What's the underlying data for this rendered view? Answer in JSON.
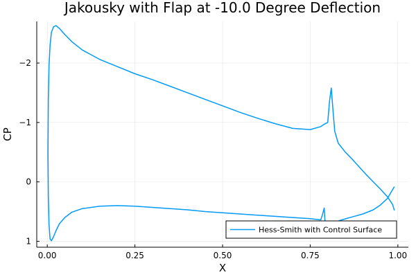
{
  "chart_data": {
    "type": "line",
    "title": "Jakousky with Flap at -10.0 Degree Deflection",
    "xlabel": "X",
    "ylabel": "CP",
    "xlim": [
      -0.03,
      1.03
    ],
    "ylim": [
      -2.7,
      1.1
    ],
    "y_axis_inverted": true,
    "x_ticks": [
      0.0,
      0.25,
      0.5,
      0.75,
      1.0
    ],
    "x_tick_labels": [
      "0.00",
      "0.25",
      "0.50",
      "0.75",
      "1.00"
    ],
    "y_ticks": [
      -2,
      -1,
      0,
      1
    ],
    "y_tick_labels": [
      "−2",
      "−1",
      "0",
      "1"
    ],
    "grid": true,
    "legend_position": "bottom-right",
    "series": [
      {
        "name": "Hess-Smith with Control Surface",
        "color": "#009af9",
        "x": [
          0.99,
          0.985,
          0.97,
          0.95,
          0.93,
          0.91,
          0.89,
          0.87,
          0.85,
          0.83,
          0.82,
          0.815,
          0.81,
          0.805,
          0.8,
          0.79,
          0.78,
          0.75,
          0.7,
          0.65,
          0.6,
          0.55,
          0.5,
          0.45,
          0.4,
          0.35,
          0.3,
          0.25,
          0.2,
          0.15,
          0.1,
          0.07,
          0.05,
          0.035,
          0.025,
          0.018,
          0.012,
          0.008,
          0.005,
          0.003,
          0.002,
          0.003,
          0.005,
          0.008,
          0.012,
          0.018,
          0.025,
          0.035,
          0.05,
          0.07,
          0.1,
          0.15,
          0.2,
          0.25,
          0.3,
          0.35,
          0.4,
          0.45,
          0.5,
          0.55,
          0.6,
          0.65,
          0.7,
          0.75,
          0.78,
          0.785,
          0.79,
          0.792,
          0.8,
          0.81,
          0.82,
          0.84,
          0.87,
          0.9,
          0.93,
          0.95,
          0.97,
          0.98,
          0.99
        ],
        "y": [
          0.48,
          0.38,
          0.25,
          0.12,
          0.0,
          -0.12,
          -0.25,
          -0.38,
          -0.5,
          -0.65,
          -0.85,
          -1.2,
          -1.58,
          -1.35,
          -1.0,
          -0.97,
          -0.93,
          -0.88,
          -0.9,
          -0.98,
          -1.07,
          -1.17,
          -1.28,
          -1.39,
          -1.5,
          -1.61,
          -1.72,
          -1.82,
          -1.94,
          -2.06,
          -2.22,
          -2.36,
          -2.48,
          -2.58,
          -2.63,
          -2.61,
          -2.52,
          -2.3,
          -1.95,
          -1.4,
          -0.5,
          0.25,
          0.72,
          0.96,
          0.99,
          0.92,
          0.82,
          0.7,
          0.6,
          0.51,
          0.45,
          0.41,
          0.4,
          0.41,
          0.43,
          0.45,
          0.47,
          0.5,
          0.52,
          0.54,
          0.56,
          0.58,
          0.6,
          0.62,
          0.64,
          0.55,
          0.44,
          0.66,
          0.68,
          0.7,
          0.68,
          0.64,
          0.59,
          0.54,
          0.47,
          0.39,
          0.28,
          0.18,
          0.08
        ]
      }
    ]
  }
}
